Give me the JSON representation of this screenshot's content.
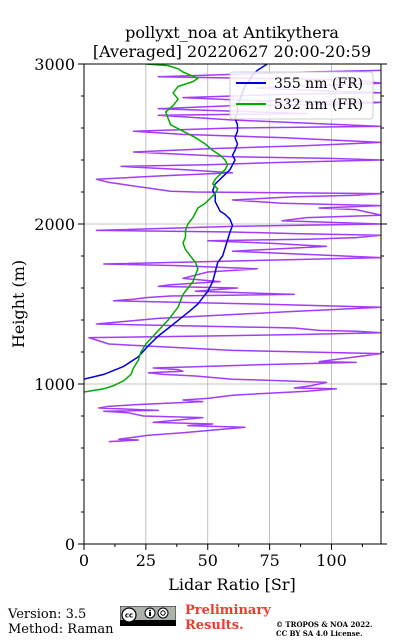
{
  "chart_data": {
    "type": "line",
    "title_line1": "pollyxt_noa at Antikythera",
    "title_line2": "[Averaged] 20220627 20:00-20:59",
    "xlabel": "Lidar Ratio [Sr]",
    "ylabel": "Height (m)",
    "xlim": [
      0,
      120
    ],
    "ylim": [
      0,
      3000
    ],
    "xticks": [
      0,
      25,
      50,
      75,
      100
    ],
    "yticks": [
      0,
      1000,
      2000,
      3000
    ],
    "grid": true,
    "legend_position": "top-right",
    "series": [
      {
        "name": "355 nm (FR)",
        "color": "#0000dd",
        "points": [
          [
            0,
            1030
          ],
          [
            8,
            1060
          ],
          [
            16,
            1110
          ],
          [
            22,
            1170
          ],
          [
            26,
            1240
          ],
          [
            30,
            1300
          ],
          [
            35,
            1360
          ],
          [
            39,
            1410
          ],
          [
            43,
            1460
          ],
          [
            46,
            1500
          ],
          [
            48,
            1540
          ],
          [
            50,
            1580
          ],
          [
            52,
            1640
          ],
          [
            53,
            1700
          ],
          [
            54,
            1760
          ],
          [
            56,
            1800
          ],
          [
            57,
            1850
          ],
          [
            58,
            1900
          ],
          [
            59,
            1950
          ],
          [
            60,
            1990
          ],
          [
            59,
            2030
          ],
          [
            57,
            2060
          ],
          [
            55,
            2080
          ],
          [
            54,
            2110
          ],
          [
            53,
            2140
          ],
          [
            53,
            2180
          ],
          [
            52,
            2210
          ],
          [
            53,
            2250
          ],
          [
            55,
            2280
          ],
          [
            57,
            2310
          ],
          [
            59,
            2340
          ],
          [
            60,
            2370
          ],
          [
            61,
            2400
          ],
          [
            60,
            2430
          ],
          [
            61,
            2460
          ],
          [
            62,
            2500
          ],
          [
            61,
            2540
          ],
          [
            62,
            2580
          ],
          [
            62,
            2620
          ],
          [
            61,
            2660
          ],
          [
            62,
            2700
          ],
          [
            62,
            2740
          ],
          [
            63,
            2780
          ],
          [
            64,
            2820
          ],
          [
            65,
            2860
          ],
          [
            67,
            2900
          ],
          [
            68,
            2930
          ],
          [
            70,
            2960
          ],
          [
            72,
            2980
          ],
          [
            74,
            3000
          ]
        ]
      },
      {
        "name": "532 nm (FR)",
        "color": "#00aa00",
        "points": [
          [
            0,
            950
          ],
          [
            8,
            970
          ],
          [
            12,
            990
          ],
          [
            16,
            1020
          ],
          [
            19,
            1060
          ],
          [
            20,
            1100
          ],
          [
            22,
            1150
          ],
          [
            23,
            1200
          ],
          [
            25,
            1250
          ],
          [
            28,
            1300
          ],
          [
            31,
            1350
          ],
          [
            34,
            1400
          ],
          [
            36,
            1440
          ],
          [
            38,
            1480
          ],
          [
            39,
            1520
          ],
          [
            40,
            1560
          ],
          [
            42,
            1600
          ],
          [
            44,
            1640
          ],
          [
            45,
            1680
          ],
          [
            46,
            1720
          ],
          [
            45,
            1760
          ],
          [
            43,
            1800
          ],
          [
            41,
            1840
          ],
          [
            40,
            1880
          ],
          [
            41,
            1920
          ],
          [
            41,
            1960
          ],
          [
            42,
            2000
          ],
          [
            44,
            2040
          ],
          [
            45,
            2070
          ],
          [
            46,
            2100
          ],
          [
            49,
            2130
          ],
          [
            51,
            2160
          ],
          [
            53,
            2190
          ],
          [
            54,
            2220
          ],
          [
            52,
            2250
          ],
          [
            53,
            2280
          ],
          [
            55,
            2310
          ],
          [
            57,
            2340
          ],
          [
            58,
            2370
          ],
          [
            57,
            2400
          ],
          [
            55,
            2430
          ],
          [
            52,
            2460
          ],
          [
            49,
            2500
          ],
          [
            45,
            2540
          ],
          [
            40,
            2580
          ],
          [
            35,
            2620
          ],
          [
            34,
            2660
          ],
          [
            33,
            2700
          ],
          [
            36,
            2740
          ],
          [
            38,
            2780
          ],
          [
            36,
            2820
          ],
          [
            38,
            2860
          ],
          [
            44,
            2890
          ],
          [
            46,
            2910
          ],
          [
            43,
            2930
          ],
          [
            40,
            2950
          ],
          [
            38,
            2970
          ],
          [
            34,
            2990
          ],
          [
            25,
            3000
          ]
        ]
      },
      {
        "name": "",
        "color": "#a23cfa",
        "points": [
          [
            10,
            640
          ],
          [
            22,
            650
          ],
          [
            14,
            655
          ],
          [
            26,
            680
          ],
          [
            40,
            695
          ],
          [
            65,
            730
          ],
          [
            42,
            740
          ],
          [
            52,
            750
          ],
          [
            28,
            760
          ],
          [
            38,
            775
          ],
          [
            48,
            790
          ],
          [
            24,
            800
          ],
          [
            18,
            820
          ],
          [
            8,
            830
          ],
          [
            30,
            835
          ],
          [
            6,
            850
          ],
          [
            10,
            860
          ],
          [
            20,
            870
          ],
          [
            48,
            890
          ],
          [
            40,
            900
          ],
          [
            50,
            910
          ],
          [
            60,
            930
          ],
          [
            90,
            955
          ],
          [
            102,
            970
          ],
          [
            85,
            975
          ],
          [
            92,
            990
          ],
          [
            98,
            1010
          ],
          [
            80,
            1020
          ],
          [
            60,
            1030
          ],
          [
            45,
            1050
          ],
          [
            32,
            1060
          ],
          [
            26,
            1070
          ],
          [
            40,
            1080
          ],
          [
            38,
            1090
          ],
          [
            28,
            1100
          ],
          [
            50,
            1110
          ],
          [
            70,
            1120
          ],
          [
            110,
            1135
          ],
          [
            95,
            1140
          ],
          [
            105,
            1160
          ],
          [
            120,
            1190
          ],
          [
            90,
            1200
          ],
          [
            60,
            1210
          ],
          [
            10,
            1250
          ],
          [
            2,
            1290
          ],
          [
            50,
            1300
          ],
          [
            90,
            1310
          ],
          [
            120,
            1320
          ],
          [
            110,
            1330
          ],
          [
            95,
            1335
          ],
          [
            85,
            1350
          ],
          [
            5,
            1375
          ],
          [
            30,
            1410
          ],
          [
            80,
            1450
          ],
          [
            120,
            1480
          ],
          [
            70,
            1500
          ],
          [
            12,
            1520
          ],
          [
            20,
            1530
          ],
          [
            25,
            1540
          ],
          [
            35,
            1550
          ],
          [
            85,
            1560
          ],
          [
            45,
            1580
          ],
          [
            62,
            1600
          ],
          [
            30,
            1610
          ],
          [
            35,
            1620
          ],
          [
            55,
            1640
          ],
          [
            40,
            1660
          ],
          [
            50,
            1700
          ],
          [
            70,
            1720
          ],
          [
            38,
            1740
          ],
          [
            8,
            1750
          ],
          [
            120,
            1790
          ],
          [
            90,
            1810
          ],
          [
            60,
            1830
          ],
          [
            98,
            1860
          ],
          [
            75,
            1880
          ],
          [
            50,
            1895
          ],
          [
            90,
            1905
          ],
          [
            110,
            1915
          ],
          [
            120,
            1930
          ],
          [
            85,
            1940
          ],
          [
            60,
            1950
          ],
          [
            5,
            1960
          ],
          [
            60,
            1985
          ],
          [
            120,
            2000
          ],
          [
            100,
            2010
          ],
          [
            80,
            2020
          ],
          [
            90,
            2040
          ],
          [
            120,
            2055
          ],
          [
            110,
            2090
          ],
          [
            95,
            2100
          ],
          [
            120,
            2115
          ],
          [
            80,
            2130
          ],
          [
            60,
            2150
          ],
          [
            85,
            2170
          ],
          [
            110,
            2180
          ],
          [
            120,
            2190
          ],
          [
            45,
            2200
          ],
          [
            35,
            2205
          ],
          [
            10,
            2260
          ],
          [
            5,
            2280
          ],
          [
            30,
            2300
          ],
          [
            60,
            2320
          ],
          [
            40,
            2340
          ],
          [
            15,
            2360
          ],
          [
            50,
            2370
          ],
          [
            80,
            2385
          ],
          [
            120,
            2400
          ],
          [
            100,
            2410
          ],
          [
            60,
            2420
          ],
          [
            20,
            2450
          ],
          [
            50,
            2470
          ],
          [
            90,
            2490
          ],
          [
            120,
            2510
          ],
          [
            80,
            2540
          ],
          [
            40,
            2560
          ],
          [
            20,
            2580
          ],
          [
            60,
            2600
          ],
          [
            120,
            2610
          ],
          [
            60,
            2650
          ],
          [
            30,
            2680
          ],
          [
            90,
            2690
          ],
          [
            70,
            2700
          ],
          [
            30,
            2720
          ],
          [
            60,
            2740
          ],
          [
            110,
            2750
          ],
          [
            120,
            2760
          ],
          [
            70,
            2770
          ],
          [
            40,
            2790
          ],
          [
            80,
            2810
          ],
          [
            120,
            2820
          ],
          [
            100,
            2830
          ],
          [
            70,
            2850
          ],
          [
            120,
            2880
          ],
          [
            110,
            2900
          ],
          [
            70,
            2910
          ],
          [
            30,
            2920
          ],
          [
            60,
            2935
          ],
          [
            90,
            2950
          ],
          [
            120,
            2960
          ]
        ]
      }
    ]
  },
  "footer": {
    "version": "Version: 3.5",
    "method": "Method: Raman",
    "preliminary_line1": "Preliminary",
    "preliminary_line2": "Results.",
    "copyright_line1": "© TROPOS & NOA 2022.",
    "copyright_line2": "CC BY SA 4.0 License.",
    "license_badge": "cc-by-sa-icon"
  }
}
